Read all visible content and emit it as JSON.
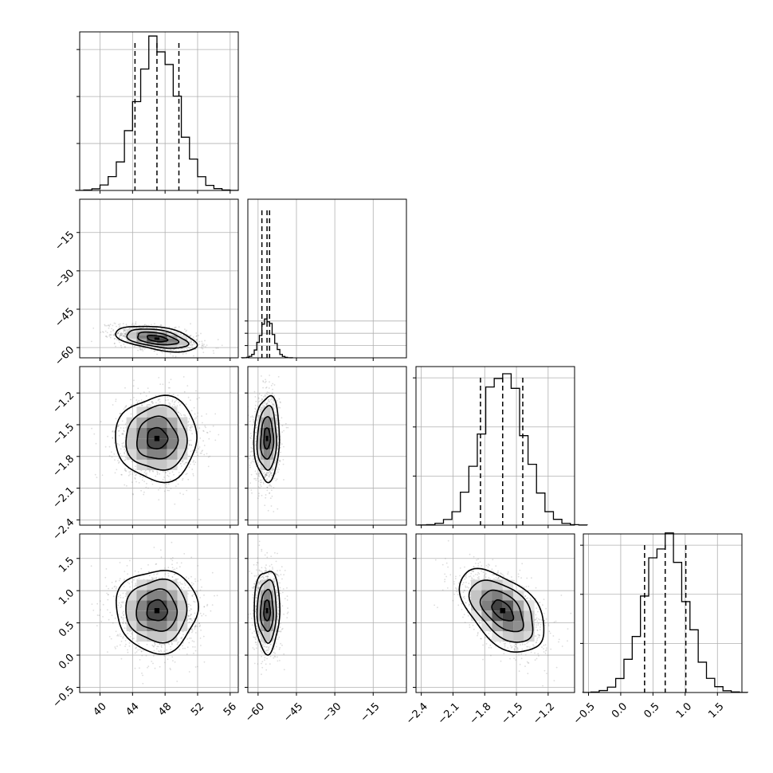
{
  "chart_data": {
    "type": "corner",
    "parameters": [
      {
        "index": 0,
        "range": [
          37.5,
          57.0
        ],
        "ticks": [
          40,
          44,
          48,
          52,
          56
        ],
        "tick_labels": [
          "40",
          "44",
          "48",
          "52",
          "56"
        ],
        "quantiles": [
          44.3,
          47.0,
          49.7
        ],
        "mean": 47.0,
        "std": 2.5,
        "hist_max": 0.162
      },
      {
        "index": 1,
        "range": [
          -64.0,
          -2.0
        ],
        "ticks": [
          -60,
          -45,
          -30,
          -15
        ],
        "tick_labels": [
          "−60",
          "−45",
          "−30",
          "−15"
        ],
        "quantiles": [
          -58.5,
          -56.5,
          -55.5
        ],
        "mean": -56.5,
        "std": 2.5,
        "hist_max": 0.62
      },
      {
        "index": 2,
        "range": [
          -2.45,
          -0.95
        ],
        "ticks": [
          -2.4,
          -2.1,
          -1.8,
          -1.5,
          -1.2
        ],
        "tick_labels": [
          "−2.4",
          "−2.1",
          "−1.8",
          "−1.5",
          "−1.2"
        ],
        "quantiles": [
          -1.84,
          -1.63,
          -1.44
        ],
        "mean": -1.63,
        "std": 0.2,
        "hist_max": 0.155
      },
      {
        "index": 3,
        "range": [
          -0.58,
          1.88
        ],
        "ticks": [
          -0.5,
          0.0,
          0.5,
          1.0,
          1.5
        ],
        "tick_labels": [
          "−0.5",
          "0.0",
          "0.5",
          "1.0",
          "1.5"
        ],
        "quantiles": [
          0.37,
          0.69,
          1.01
        ],
        "mean": 0.69,
        "std": 0.32,
        "hist_max": 0.155
      }
    ],
    "correlations": [
      {
        "pair": [
          0,
          1
        ],
        "rho": -0.45
      },
      {
        "pair": [
          0,
          2
        ],
        "rho": 0.0
      },
      {
        "pair": [
          1,
          2
        ],
        "rho": 0.05
      },
      {
        "pair": [
          0,
          3
        ],
        "rho": 0.0
      },
      {
        "pair": [
          1,
          3
        ],
        "rho": 0.0
      },
      {
        "pair": [
          2,
          3
        ],
        "rho": -0.5
      }
    ],
    "histogram_bins": 20,
    "contour_levels_sigma": [
      0.5,
      1.0,
      1.5,
      2.0
    ],
    "grid": true,
    "title": "",
    "colors": {
      "ink": "#000000",
      "grid": "#b0b0b0",
      "sample": "#808080"
    }
  }
}
